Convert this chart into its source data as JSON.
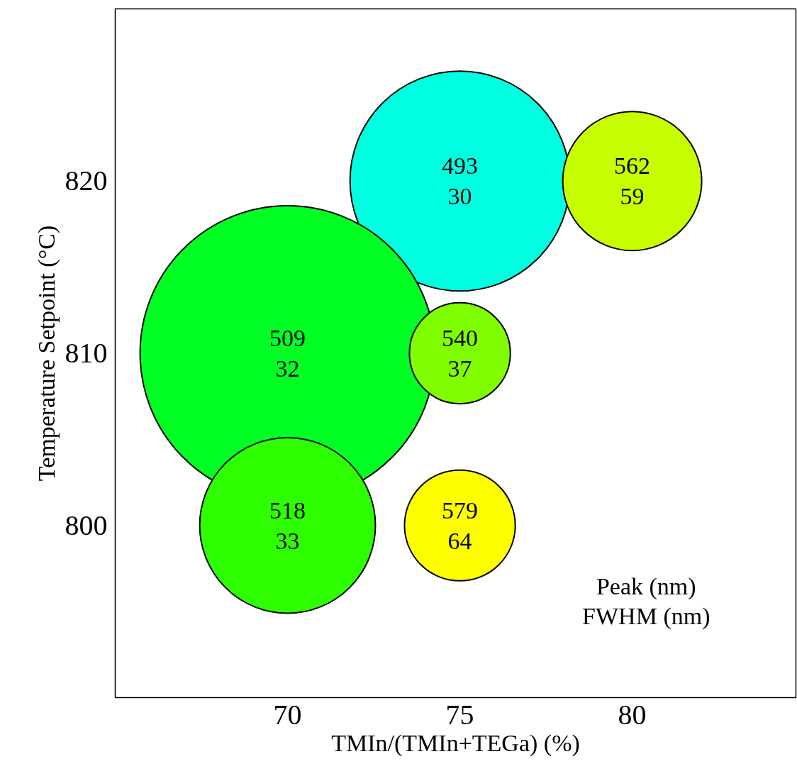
{
  "chart_data": {
    "type": "bubble",
    "xlabel": "TMIn/(TMIn+TEGa) (%)",
    "ylabel": "Temperature Setpoint (°C)",
    "x": [
      75,
      80,
      70,
      75,
      70,
      75
    ],
    "values": [
      820,
      820,
      810,
      810,
      800,
      800
    ],
    "sizes": [
      0.555,
      0.222,
      1,
      0.117,
      0.355,
      0.141
    ],
    "colors": [
      "#00ffe0",
      "#c8ff00",
      "#00ff22",
      "#80ff00",
      "#2dff00",
      "#ffff00"
    ],
    "xlim": [
      65,
      84.75
    ],
    "ylim": [
      790,
      830
    ],
    "xticks": [
      70,
      75,
      80
    ],
    "yticks": [
      800,
      810,
      820
    ],
    "grid": false,
    "annotations": [
      {
        "text": "493\n30",
        "x": 75,
        "y": 820
      },
      {
        "text": "562\n59",
        "x": 80,
        "y": 820
      },
      {
        "text": "509\n32",
        "x": 70,
        "y": 810
      },
      {
        "text": "540\n37",
        "x": 75,
        "y": 810
      },
      {
        "text": "518\n33",
        "x": 70,
        "y": 800
      },
      {
        "text": "579\n64",
        "x": 75,
        "y": 800
      },
      "Peak (nm)\nFWHM (nm)"
    ]
  }
}
